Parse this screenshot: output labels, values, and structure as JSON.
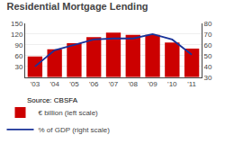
{
  "chart_data": {
    "type": "bar",
    "title": "Residential Mortgage Lending",
    "categories": [
      "'03",
      "'04",
      "'05",
      "'06",
      "'07",
      "'08",
      "'09",
      "'10",
      "'11"
    ],
    "series": [
      {
        "name": "€ billion (left scale)",
        "type": "bar",
        "color": "#cc0000",
        "values": [
          58,
          78,
          95,
          112,
          124,
          118,
          118,
          97,
          80
        ]
      },
      {
        "name": "% of GDP (right scale)",
        "type": "line",
        "color": "#1a3399",
        "axis": "y2",
        "values": [
          40,
          55,
          60,
          65,
          66,
          66,
          70,
          65,
          51
        ]
      }
    ],
    "ylim": [
      0,
      150
    ],
    "yticks": [
      30,
      60,
      90,
      120,
      150
    ],
    "y2lim": [
      30,
      80
    ],
    "y2ticks": [
      30,
      40,
      50,
      60,
      70,
      80
    ],
    "grid": true,
    "legend": "lower left",
    "annotations": [
      "Source: CBSFA"
    ]
  }
}
